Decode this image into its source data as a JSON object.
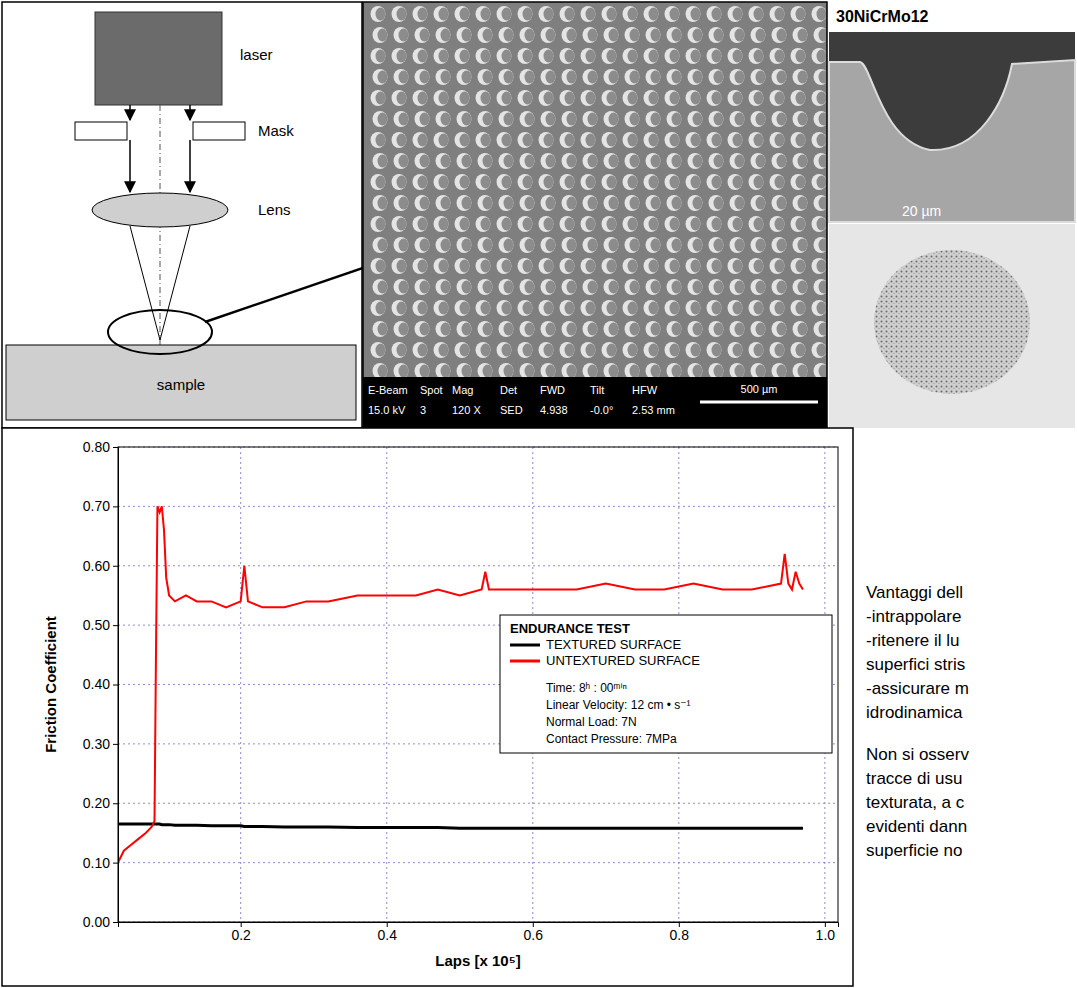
{
  "diagram": {
    "labels": [
      "laser",
      "Mask",
      "Lens",
      "sample"
    ]
  },
  "sem_image": {
    "info": [
      {
        "label": "E-Beam",
        "value": "15.0 kV"
      },
      {
        "label": "Spot",
        "value": "3"
      },
      {
        "label": "Mag",
        "value": "120 X"
      },
      {
        "label": "Det",
        "value": "SED"
      },
      {
        "label": "FWD",
        "value": "4.938"
      },
      {
        "label": "Tilt",
        "value": "-0.0°"
      },
      {
        "label": "HFW",
        "value": "2.53 mm"
      }
    ],
    "scale_bar": "500 µm"
  },
  "material": {
    "title": "30NiCrMo12",
    "scale_bar": "20 µm"
  },
  "chart_data": {
    "type": "line",
    "x_label": "Laps [x 10⁵]",
    "y_label": "Friction Coefficient",
    "xlim": [
      0.032,
      1.018
    ],
    "ylim": [
      0,
      0.8
    ],
    "xticks": [
      0.2,
      0.4,
      0.6,
      0.8,
      {
        "value": 1,
        "label": "1.0"
      }
    ],
    "yticks": [
      {
        "value": 0,
        "label": "0.00"
      },
      {
        "value": 0.1,
        "label": "0.10"
      },
      {
        "value": 0.2,
        "label": "0.20"
      },
      {
        "value": 0.3,
        "label": "0.30"
      },
      {
        "value": 0.4,
        "label": "0.40"
      },
      {
        "value": 0.5,
        "label": "0.50"
      },
      {
        "value": 0.6,
        "label": "0.60"
      },
      {
        "value": 0.7,
        "label": "0.70"
      },
      {
        "value": 0.8,
        "label": "0.80"
      }
    ],
    "grid": true,
    "legend": "right",
    "legend_title": "ENDURANCE TEST",
    "annotations": [
      "Time: 8ʰ : 00ᵐⁱⁿ",
      "Linear Velocity: 12 cm • s⁻¹",
      "Normal Load: 7N",
      "Contact Pressure: 7MPa"
    ],
    "x": [
      0.032,
      0.04,
      0.05,
      0.06,
      0.07,
      0.078,
      0.082,
      0.084,
      0.086,
      0.089,
      0.092,
      0.095,
      0.098,
      0.102,
      0.11,
      0.125,
      0.14,
      0.16,
      0.18,
      0.2,
      0.205,
      0.21,
      0.23,
      0.26,
      0.29,
      0.32,
      0.36,
      0.4,
      0.44,
      0.47,
      0.5,
      0.53,
      0.535,
      0.54,
      0.56,
      0.58,
      0.62,
      0.66,
      0.7,
      0.74,
      0.78,
      0.82,
      0.86,
      0.9,
      0.94,
      0.945,
      0.95,
      0.955,
      0.96,
      0.965,
      0.97
    ],
    "series": [
      {
        "name": "TEXTURED SURFACE",
        "color": "#000000",
        "values": [
          0.165,
          0.165,
          0.165,
          0.165,
          0.165,
          0.165,
          0.165,
          0.165,
          0.165,
          0.165,
          0.164,
          0.164,
          0.164,
          0.164,
          0.163,
          0.163,
          0.163,
          0.162,
          0.162,
          0.162,
          0.161,
          0.161,
          0.161,
          0.16,
          0.16,
          0.16,
          0.159,
          0.159,
          0.159,
          0.159,
          0.158,
          0.158,
          0.158,
          0.158,
          0.158,
          0.158,
          0.158,
          0.158,
          0.158,
          0.158,
          0.158,
          0.158,
          0.158,
          0.158,
          0.158,
          0.158,
          0.158,
          0.158,
          0.158,
          0.158,
          0.158
        ]
      },
      {
        "name": "UNTEXTURED SURFACE",
        "color": "#ff0000",
        "values": [
          0.1,
          0.12,
          0.13,
          0.14,
          0.15,
          0.16,
          0.17,
          0.45,
          0.7,
          0.69,
          0.7,
          0.66,
          0.58,
          0.55,
          0.54,
          0.55,
          0.54,
          0.54,
          0.53,
          0.54,
          0.6,
          0.54,
          0.53,
          0.53,
          0.54,
          0.54,
          0.55,
          0.55,
          0.55,
          0.56,
          0.55,
          0.56,
          0.59,
          0.56,
          0.56,
          0.56,
          0.56,
          0.56,
          0.57,
          0.56,
          0.56,
          0.57,
          0.56,
          0.56,
          0.57,
          0.62,
          0.57,
          0.56,
          0.59,
          0.57,
          0.56
        ]
      }
    ]
  },
  "text": {
    "paragraphs": [
      [
        "Vantaggi dell",
        "-intrappolare",
        "-ritenere il lu",
        "superfici stris",
        "-assicurare m",
        "idrodinamica"
      ],
      [
        "Non si osserv",
        "tracce di usu",
        "texturata, a c",
        "evidenti dann",
        "superficie no"
      ]
    ]
  }
}
